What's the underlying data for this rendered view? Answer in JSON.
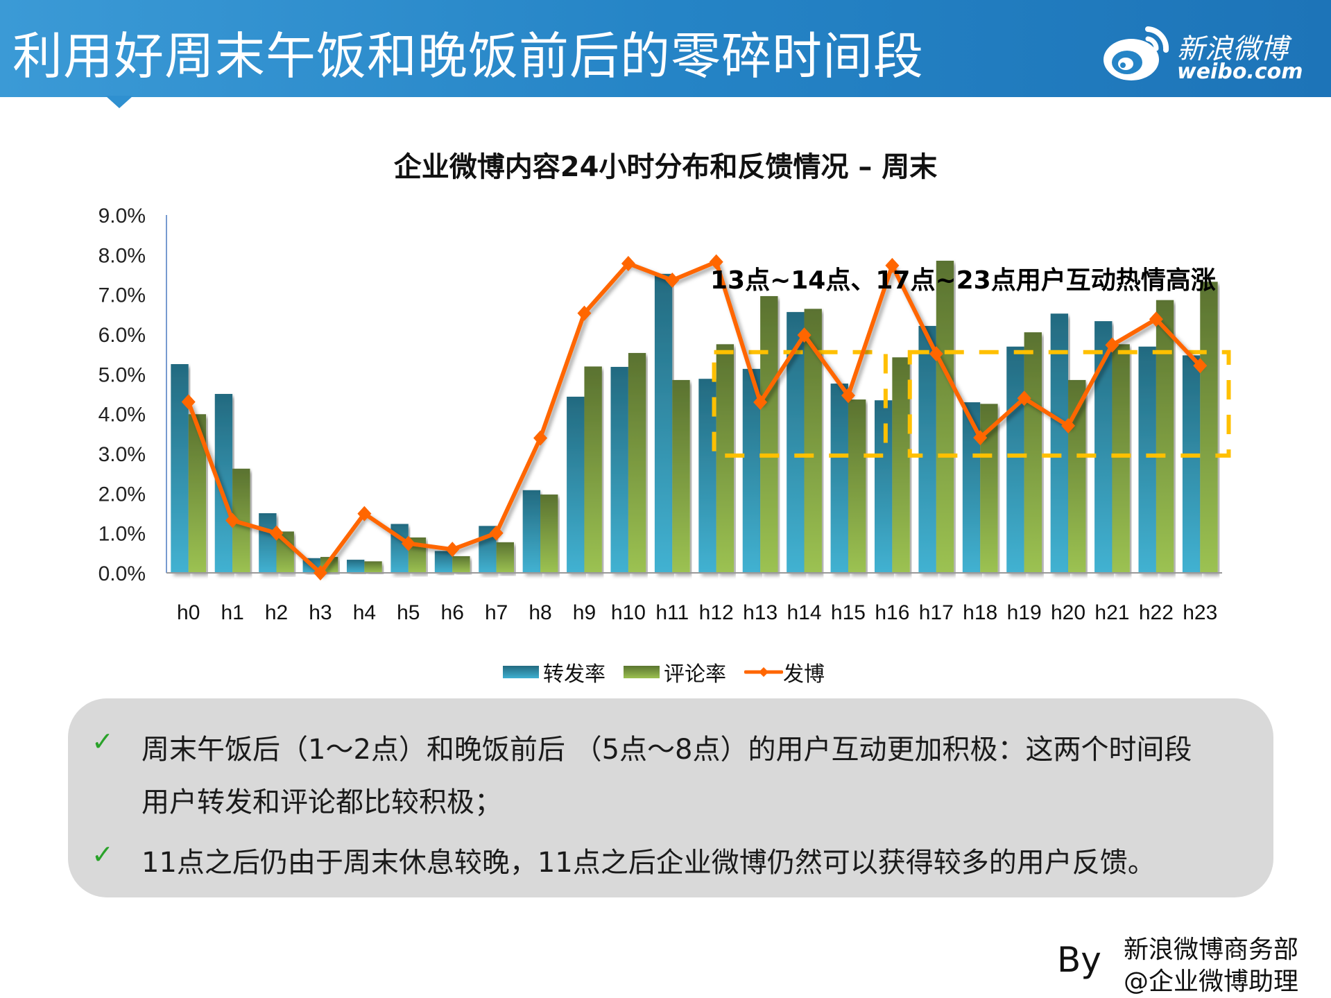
{
  "header": {
    "title": "利用好周末午饭和晚饭前后的零碎时间段",
    "logo_cn": "新浪微博",
    "logo_en": "weibo.com",
    "color": "#2584c6"
  },
  "chart_data": {
    "type": "bar+line",
    "title": "企业微博内容24小时分布和反馈情况 – 周末",
    "categories": [
      "h0",
      "h1",
      "h2",
      "h3",
      "h4",
      "h5",
      "h6",
      "h7",
      "h8",
      "h9",
      "h10",
      "h11",
      "h12",
      "h13",
      "h14",
      "h15",
      "h16",
      "h17",
      "h18",
      "h19",
      "h20",
      "h21",
      "h22",
      "h23"
    ],
    "y_ticks": [
      "0.0%",
      "1.0%",
      "2.0%",
      "3.0%",
      "4.0%",
      "5.0%",
      "6.0%",
      "7.0%",
      "8.0%",
      "9.0%"
    ],
    "ylim": [
      0,
      9
    ],
    "yunit": "%",
    "grid": false,
    "legend_position": "bottom",
    "series": [
      {
        "name": "转发率",
        "type": "bar",
        "color": "#2d8aa8",
        "values": [
          5.25,
          4.5,
          1.5,
          0.37,
          0.33,
          1.23,
          0.55,
          1.18,
          2.08,
          4.43,
          5.18,
          7.52,
          4.88,
          5.13,
          6.56,
          4.76,
          4.34,
          6.21,
          4.29,
          5.69,
          6.52,
          6.33,
          5.69,
          5.47
        ]
      },
      {
        "name": "评论率",
        "type": "bar",
        "color": "#7a9a3a",
        "values": [
          3.99,
          2.62,
          1.04,
          0.4,
          0.29,
          0.89,
          0.42,
          0.77,
          1.97,
          5.19,
          5.53,
          4.85,
          5.75,
          6.96,
          6.64,
          4.36,
          5.42,
          7.85,
          4.25,
          6.05,
          4.85,
          5.75,
          6.86,
          7.32
        ]
      },
      {
        "name": "发博",
        "type": "line",
        "color": "#ff6600",
        "values": [
          4.3,
          1.32,
          1.0,
          0.0,
          1.49,
          0.74,
          0.59,
          1.0,
          3.39,
          6.53,
          7.78,
          7.36,
          7.82,
          4.29,
          5.98,
          4.46,
          7.73,
          5.51,
          3.4,
          4.39,
          3.7,
          5.73,
          6.38,
          5.21
        ]
      }
    ],
    "annotation": "13点~14点、17点~23点用户互动热情高涨",
    "highlight_color": "#ffc000"
  },
  "notes": {
    "bullets": [
      {
        "line1": "周末午饭后（1～2点）和晚饭前后 （5点～8点）的用户互动更加积极：这两个时间段",
        "line2": "用户转发和评论都比较积极；"
      },
      {
        "line1": "11点之后仍由于周末休息较晚，11点之后企业微博仍然可以获得较多的用户反馈。"
      }
    ],
    "check_icon": "✓"
  },
  "footer": {
    "by": "By",
    "dept": "新浪微博商务部",
    "account": "@企业微博助理"
  }
}
